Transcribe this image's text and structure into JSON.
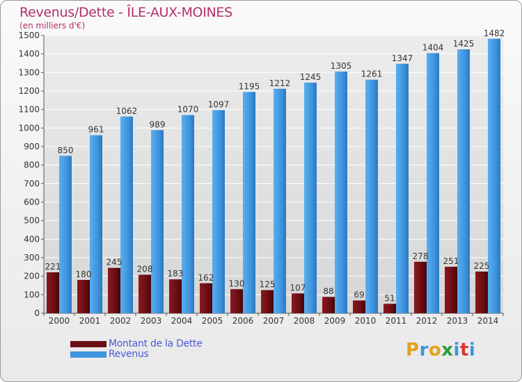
{
  "header": {
    "title": "Revenus/Dette - ÎLE-AUX-MOINES",
    "subtitle": "(en milliers d'€)"
  },
  "chart_data": {
    "type": "bar",
    "categories": [
      "2000",
      "2001",
      "2002",
      "2003",
      "2004",
      "2005",
      "2006",
      "2007",
      "2008",
      "2009",
      "2010",
      "2011",
      "2012",
      "2013",
      "2014"
    ],
    "series": [
      {
        "name": "Montant de la Dette",
        "color": "#6b0e14",
        "values": [
          221,
          180,
          245,
          208,
          183,
          162,
          130,
          125,
          107,
          88,
          69,
          51,
          278,
          251,
          225
        ]
      },
      {
        "name": "Revenus",
        "color": "#3e95de",
        "values": [
          850,
          961,
          1062,
          989,
          1070,
          1097,
          1195,
          1212,
          1245,
          1305,
          1261,
          1347,
          1404,
          1425,
          1482
        ]
      }
    ],
    "ylim": [
      0,
      1500
    ],
    "yticks": [
      0,
      100,
      200,
      300,
      400,
      500,
      600,
      700,
      800,
      900,
      1000,
      1100,
      1200,
      1300,
      1400,
      1500
    ],
    "grid": true,
    "legend_position": "bottom-left"
  },
  "legend": {
    "items": [
      {
        "label": "Montant de la Dette",
        "color": "#6b0e14"
      },
      {
        "label": "Revenus",
        "color": "#3e95de"
      }
    ]
  },
  "logo": {
    "text": "Proxiti"
  }
}
